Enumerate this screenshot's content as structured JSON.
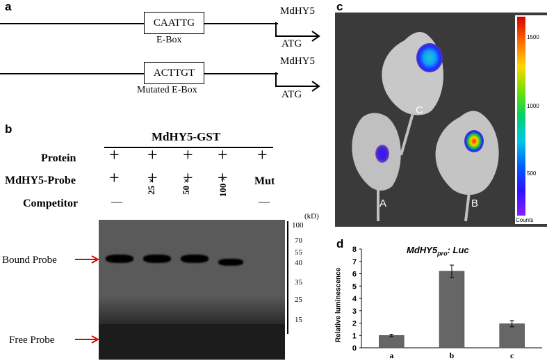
{
  "panel_a": {
    "letter": "a",
    "construct1": {
      "box": "CAATTG",
      "box_label": "E-Box",
      "gene": "MdHY5",
      "atg": "ATG"
    },
    "construct2": {
      "box": "ACTTGT",
      "box_label": "Mutated E-Box",
      "gene": "MdHY5",
      "atg": "ATG"
    }
  },
  "panel_b": {
    "letter": "b",
    "header": "MdHY5-GST",
    "row_labels": {
      "protein": "Protein",
      "probe": "MdHY5-Probe",
      "competitor": "Competitor"
    },
    "protein_marks": [
      "+",
      "+",
      "+",
      "+",
      "+"
    ],
    "probe_marks": [
      "+",
      "+",
      "+",
      "+",
      "Mut"
    ],
    "competitor_marks": [
      "—",
      "25 ×",
      "50 ×",
      "100 ×",
      "—"
    ],
    "kd_label": "(kD)",
    "ladder": [
      "100",
      "70",
      "55",
      "40",
      "35",
      "25",
      "15"
    ],
    "bound_label": "Bound  Probe",
    "free_label": "Free  Probe"
  },
  "panel_c": {
    "letter": "c",
    "leaf_labels": [
      "C",
      "A",
      "B"
    ],
    "colorbar_ticks": [
      "1500",
      "1000",
      "500"
    ],
    "colorbar_unit": "Counts"
  },
  "panel_d": {
    "letter": "d",
    "chart_data": {
      "type": "bar",
      "title_main": "MdHY5",
      "title_sub": "pro",
      "title_tail": ": Luc",
      "ylabel": "Relative luminescence",
      "categories": [
        "a",
        "b",
        "c"
      ],
      "values": [
        1.0,
        6.2,
        1.95
      ],
      "errors": [
        0.1,
        0.5,
        0.25
      ],
      "ylim": [
        0,
        8
      ],
      "yticks": [
        "0",
        "1",
        "2",
        "3",
        "4",
        "5",
        "6",
        "7",
        "8"
      ],
      "bar_color": "#666666"
    }
  },
  "colors": {
    "arrow": "#e00000",
    "gel": "#1c1c1c",
    "lumi_bg": "#3a3a3a"
  }
}
